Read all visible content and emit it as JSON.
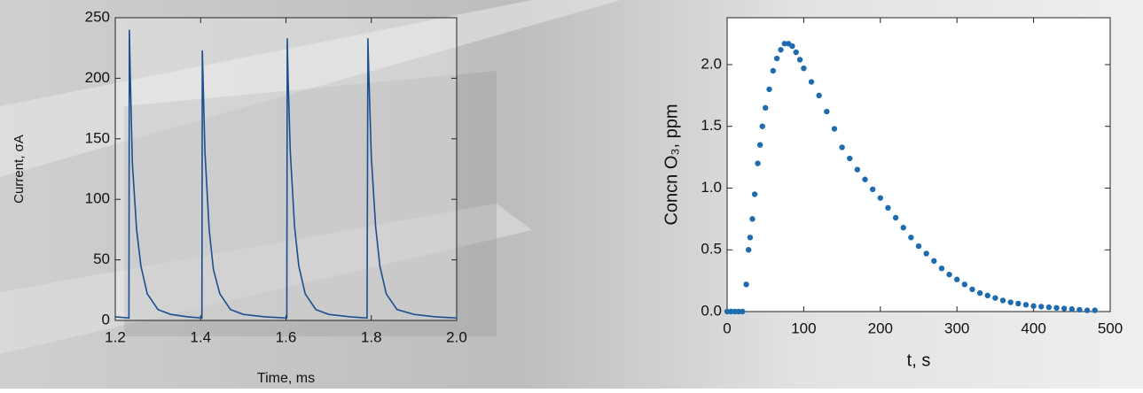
{
  "chart_data": [
    {
      "type": "line",
      "color": "#1b4f8f",
      "xlabel": "Time, ms",
      "ylabel": "Current, σA",
      "xlim": [
        1.2,
        2.0
      ],
      "ylim": [
        0,
        250
      ],
      "xticks": [
        1.2,
        1.4,
        1.6,
        1.8,
        {
          "value": 2.0,
          "label": "2.0"
        }
      ],
      "yticks": [
        0,
        50,
        100,
        150,
        200,
        250
      ],
      "x": [
        1.2,
        1.232,
        1.233,
        1.235,
        1.24,
        1.25,
        1.26,
        1.275,
        1.3,
        1.33,
        1.37,
        1.403,
        1.404,
        1.406,
        1.41,
        1.42,
        1.43,
        1.445,
        1.47,
        1.5,
        1.55,
        1.602,
        1.603,
        1.605,
        1.61,
        1.62,
        1.63,
        1.645,
        1.67,
        1.7,
        1.75,
        1.79,
        1.792,
        1.794,
        1.8,
        1.81,
        1.82,
        1.835,
        1.86,
        1.9,
        1.95,
        2.0
      ],
      "values": [
        3,
        2,
        240,
        205,
        130,
        75,
        45,
        22,
        9,
        5,
        3,
        2,
        223,
        195,
        140,
        75,
        42,
        22,
        9,
        5,
        3,
        2,
        233,
        200,
        140,
        78,
        45,
        22,
        9,
        5,
        3,
        2,
        233,
        205,
        135,
        78,
        45,
        22,
        9,
        5,
        3,
        2
      ]
    },
    {
      "type": "scatter",
      "color": "#1f6bb0",
      "xlabel": "t, s",
      "ylabel": "Concn O₃, ppm",
      "xlim": [
        0,
        500
      ],
      "ylim": [
        0,
        2.38
      ],
      "xticks": [
        0,
        100,
        200,
        300,
        400,
        500
      ],
      "yticks": [
        {
          "value": 0,
          "label": "0.0"
        },
        0.5,
        {
          "value": 1,
          "label": "1.0"
        },
        1.5,
        {
          "value": 2,
          "label": "2.0"
        }
      ],
      "x": [
        0,
        5,
        10,
        15,
        20,
        25,
        28,
        30,
        33,
        36,
        40,
        43,
        46,
        50,
        55,
        60,
        65,
        70,
        75,
        80,
        85,
        90,
        95,
        100,
        110,
        120,
        130,
        140,
        150,
        160,
        170,
        180,
        190,
        200,
        210,
        220,
        230,
        240,
        250,
        260,
        270,
        280,
        290,
        300,
        310,
        320,
        330,
        340,
        350,
        360,
        370,
        380,
        390,
        400,
        410,
        420,
        430,
        440,
        450,
        460,
        470,
        480
      ],
      "values": [
        0,
        0,
        0,
        0,
        0,
        0.22,
        0.5,
        0.6,
        0.75,
        0.95,
        1.2,
        1.35,
        1.5,
        1.65,
        1.8,
        1.95,
        2.05,
        2.12,
        2.17,
        2.17,
        2.15,
        2.1,
        2.04,
        1.97,
        1.86,
        1.75,
        1.62,
        1.48,
        1.33,
        1.24,
        1.15,
        1.07,
        0.99,
        0.92,
        0.84,
        0.76,
        0.68,
        0.6,
        0.53,
        0.47,
        0.41,
        0.35,
        0.3,
        0.26,
        0.22,
        0.18,
        0.15,
        0.13,
        0.11,
        0.09,
        0.075,
        0.065,
        0.055,
        0.045,
        0.04,
        0.035,
        0.03,
        0.025,
        0.02,
        0.015,
        0.01,
        0.01
      ]
    }
  ]
}
